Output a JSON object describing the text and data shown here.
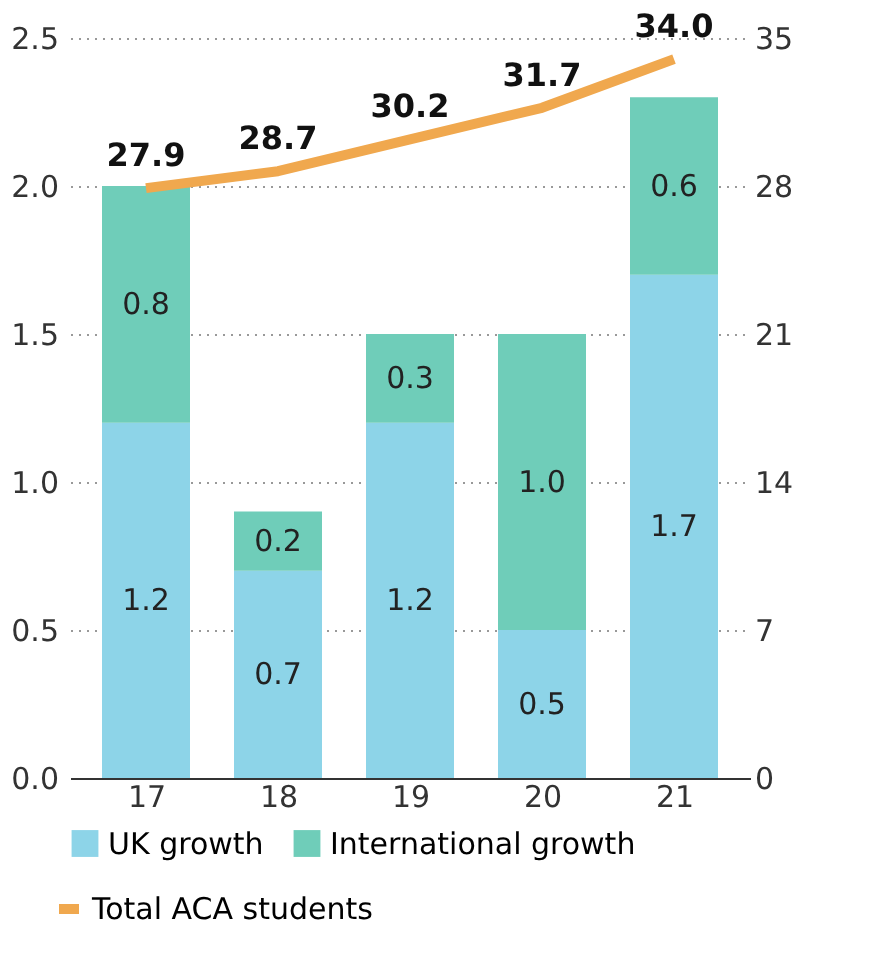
{
  "chart_data": {
    "type": "bar",
    "stacked": true,
    "categories": [
      "17",
      "18",
      "19",
      "20",
      "21"
    ],
    "series": [
      {
        "name": "UK growth",
        "color": "#8dd4e8",
        "values": [
          1.2,
          0.7,
          1.2,
          0.5,
          1.7
        ],
        "value_labels": [
          "1.2",
          "0.7",
          "1.2",
          "0.5",
          "1.7"
        ]
      },
      {
        "name": "International growth",
        "color": "#6fcdb9",
        "values": [
          0.8,
          0.2,
          0.3,
          1.0,
          0.6
        ],
        "value_labels": [
          "0.8",
          "0.2",
          "0.3",
          "1.0",
          "0.6"
        ]
      },
      {
        "name": "Total ACA students",
        "type": "line",
        "axis": "y2",
        "color": "#f0a84e",
        "values": [
          27.9,
          28.7,
          30.2,
          31.7,
          34.0
        ],
        "value_labels": [
          "27.9",
          "28.7",
          "30.2",
          "31.7",
          "34.0"
        ]
      }
    ],
    "ylim": [
      0,
      2.5
    ],
    "yticks": [
      {
        "value": 0,
        "label": "0.0"
      },
      0.5,
      {
        "value": 1,
        "label": "1.0"
      },
      1.5,
      {
        "value": 2,
        "label": "2.0"
      },
      2.5
    ],
    "y2lim": [
      0,
      35
    ],
    "y2ticks": [
      0,
      7,
      14,
      21,
      28,
      35
    ],
    "grid": "y",
    "legend": "bottom",
    "marker": "none",
    "line_style": "solid"
  }
}
